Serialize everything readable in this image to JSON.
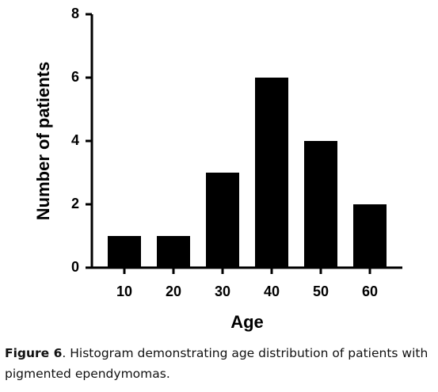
{
  "chart_data": {
    "type": "bar",
    "x_label": "Age",
    "y_label": "Number of patients",
    "categories": [
      "10",
      "20",
      "30",
      "40",
      "50",
      "60"
    ],
    "values": [
      1,
      1,
      3,
      6,
      4,
      2
    ],
    "color": "#000000",
    "ylim": [
      0,
      8
    ],
    "yticks": [
      0,
      2,
      4,
      6,
      8
    ],
    "grid": false
  },
  "caption": {
    "label": "Figure 6",
    "text": ". Histogram demonstrating age distribution of patients with pigmented ependymomas."
  }
}
